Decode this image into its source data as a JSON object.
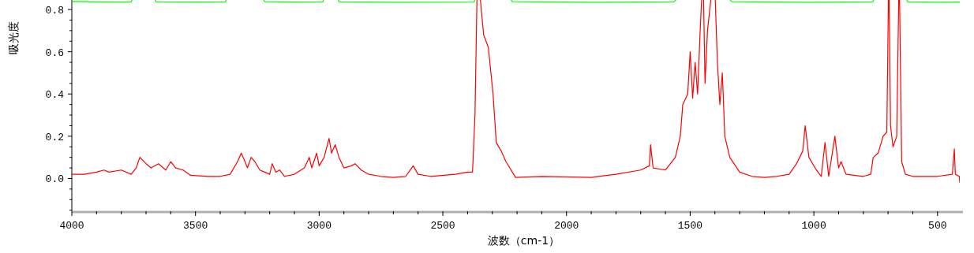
{
  "chart_data": {
    "type": "line",
    "xlabel": "波数（cm-1）",
    "ylabel": "吸光度",
    "xlim": [
      4000,
      410
    ],
    "ylim": [
      -0.155,
      0.845
    ],
    "xticks": [
      4000,
      {
        "value": 3900,
        "label": null
      },
      {
        "value": 3800,
        "label": null
      },
      {
        "value": 3700,
        "label": null
      },
      {
        "value": 3600,
        "label": null
      },
      3500,
      {
        "value": 3400,
        "label": null
      },
      {
        "value": 3300,
        "label": null
      },
      {
        "value": 3200,
        "label": null
      },
      {
        "value": 3100,
        "label": null
      },
      3000,
      {
        "value": 2900,
        "label": null
      },
      {
        "value": 2800,
        "label": null
      },
      {
        "value": 2700,
        "label": null
      },
      {
        "value": 2600,
        "label": null
      },
      2500,
      {
        "value": 2400,
        "label": null
      },
      {
        "value": 2300,
        "label": null
      },
      {
        "value": 2200,
        "label": null
      },
      {
        "value": 2100,
        "label": null
      },
      2000,
      {
        "value": 1900,
        "label": null
      },
      {
        "value": 1800,
        "label": null
      },
      {
        "value": 1700,
        "label": null
      },
      {
        "value": 1600,
        "label": null
      },
      1500,
      {
        "value": 1400,
        "label": null
      },
      {
        "value": 1300,
        "label": null
      },
      {
        "value": 1200,
        "label": null
      },
      {
        "value": 1100,
        "label": null
      },
      1000,
      {
        "value": 900,
        "label": null
      },
      {
        "value": 800,
        "label": null
      },
      {
        "value": 700,
        "label": null
      },
      {
        "value": 600,
        "label": null
      },
      500
    ],
    "yticks": [
      {
        "value": -0.15,
        "label": null
      },
      {
        "value": -0.1,
        "label": null
      },
      {
        "value": -0.05,
        "label": null
      },
      {
        "value": 0,
        "label": "0.0"
      },
      {
        "value": 0.05,
        "label": null
      },
      {
        "value": 0.1,
        "label": null
      },
      {
        "value": 0.15,
        "label": null
      },
      {
        "value": 0.2,
        "label": "0.2"
      },
      {
        "value": 0.25,
        "label": null
      },
      {
        "value": 0.3,
        "label": null
      },
      {
        "value": 0.35,
        "label": null
      },
      {
        "value": 0.4,
        "label": "0.4"
      },
      {
        "value": 0.45,
        "label": null
      },
      {
        "value": 0.5,
        "label": null
      },
      {
        "value": 0.55,
        "label": null
      },
      {
        "value": 0.6,
        "label": "0.6"
      },
      {
        "value": 0.65,
        "label": null
      },
      {
        "value": 0.7,
        "label": null
      },
      {
        "value": 0.75,
        "label": null
      },
      {
        "value": 0.8,
        "label": "0.8"
      }
    ],
    "grid": false,
    "marker": "none",
    "line_style": "solid",
    "series": [
      {
        "color": "#00ff00",
        "x": [
          4000,
          3900,
          3760,
          3710,
          3660,
          3500,
          3380,
          3300,
          3220,
          3100,
          2985,
          2950,
          2920,
          2700,
          2375,
          2300,
          2219,
          1900,
          1565,
          1450,
          1332,
          1000,
          762,
          700,
          620,
          500,
          410
        ],
        "values": [
          0.838,
          0.836,
          0.835,
          null,
          0.836,
          0.835,
          0.836,
          null,
          0.837,
          0.835,
          0.836,
          null,
          0.836,
          0.834,
          0.835,
          null,
          0.837,
          0.834,
          0.836,
          null,
          0.837,
          0.834,
          0.836,
          null,
          0.836,
          0.834,
          0.835
        ]
      },
      {
        "color": "#ff0000",
        "x": [
          4000,
          3950,
          3900,
          3870,
          3850,
          3800,
          3760,
          3740,
          3725,
          3700,
          3680,
          3650,
          3620,
          3600,
          3580,
          3550,
          3520,
          3450,
          3400,
          3360,
          3330,
          3315,
          3300,
          3290,
          3275,
          3260,
          3240,
          3220,
          3200,
          3190,
          3175,
          3160,
          3140,
          3100,
          3060,
          3040,
          3030,
          3010,
          3000,
          2980,
          2960,
          2950,
          2935,
          2920,
          2900,
          2870,
          2855,
          2830,
          2800,
          2750,
          2700,
          2650,
          2620,
          2600,
          2550,
          2450,
          2400,
          2380,
          2370,
          2360,
          2335,
          2316,
          2297,
          2284,
          2264,
          2245,
          2206,
          2100,
          1900,
          1800,
          1700,
          1665,
          1660,
          1650,
          1600,
          1560,
          1540,
          1530,
          1510,
          1500,
          1490,
          1480,
          1470,
          1460,
          1448,
          1440,
          1430,
          1403,
          1390,
          1380,
          1370,
          1360,
          1340,
          1300,
          1250,
          1200,
          1150,
          1100,
          1070,
          1045,
          1035,
          1020,
          990,
          970,
          955,
          940,
          915,
          900,
          890,
          870,
          800,
          770,
          760,
          740,
          720,
          705,
          697,
          690,
          680,
          665,
          655,
          645,
          630,
          600,
          550,
          500,
          440,
          432,
          428,
          412,
          410
        ],
        "values": [
          0.02,
          0.02,
          0.03,
          0.04,
          0.03,
          0.04,
          0.02,
          0.05,
          0.1,
          0.07,
          0.05,
          0.07,
          0.04,
          0.08,
          0.05,
          0.04,
          0.015,
          0.01,
          0.01,
          0.02,
          0.08,
          0.12,
          0.08,
          0.05,
          0.1,
          0.08,
          0.04,
          0.03,
          0.02,
          0.07,
          0.03,
          0.04,
          0.01,
          0.02,
          0.05,
          0.1,
          0.05,
          0.12,
          0.06,
          0.1,
          0.19,
          0.12,
          0.16,
          0.1,
          0.05,
          0.06,
          0.07,
          0.04,
          0.02,
          0.01,
          0.005,
          0.01,
          0.06,
          0.02,
          0.01,
          0.02,
          0.03,
          0.03,
          0.3,
          null,
          0.68,
          0.62,
          0.4,
          0.17,
          0.13,
          0.08,
          0.005,
          0.01,
          0.005,
          0.02,
          0.04,
          0.06,
          0.16,
          0.05,
          0.04,
          0.1,
          0.2,
          0.35,
          0.4,
          0.6,
          0.38,
          0.55,
          0.4,
          0.69,
          null,
          0.45,
          0.7,
          null,
          0.55,
          0.35,
          0.5,
          0.2,
          0.1,
          0.03,
          0.01,
          0.005,
          0.01,
          0.02,
          0.07,
          0.13,
          0.25,
          0.1,
          0.04,
          0.01,
          0.17,
          0.01,
          0.2,
          0.05,
          0.08,
          0.02,
          0.01,
          0.02,
          0.1,
          0.12,
          0.2,
          0.22,
          null,
          0.25,
          0.15,
          0.2,
          null,
          0.08,
          0.02,
          0.01,
          0.01,
          0.01,
          0.02,
          0.14,
          0.02,
          0.01,
          -0.02
        ]
      }
    ]
  }
}
